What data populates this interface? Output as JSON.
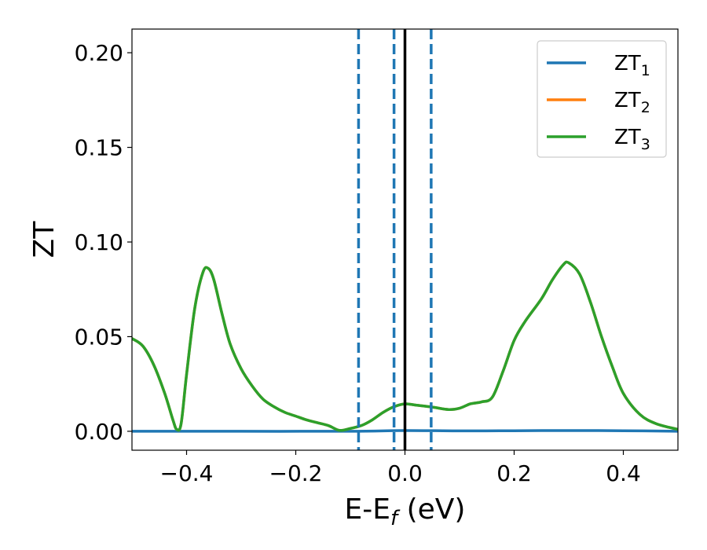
{
  "chart_data": {
    "type": "line",
    "xlabel": "E-E",
    "xlabel_sub": "f",
    "xlabel_unit": " (eV)",
    "ylabel": "ZT",
    "xlim": [
      -0.5,
      0.5
    ],
    "ylim": [
      -0.01,
      0.2125
    ],
    "xticks": [
      -0.4,
      -0.2,
      0.0,
      0.2,
      0.4
    ],
    "xtick_labels": [
      "−0.4",
      "−0.2",
      "0.0",
      "0.2",
      "0.4"
    ],
    "yticks": [
      0.0,
      0.05,
      0.1,
      0.15,
      0.2
    ],
    "ytick_labels": [
      "0.00",
      "0.05",
      "0.10",
      "0.15",
      "0.20"
    ],
    "grid": false,
    "legend_position": "top-right",
    "series": [
      {
        "name": "ZT",
        "name_sub": "1",
        "color": "#1f77b4",
        "x": [
          -0.5,
          -0.3,
          -0.1,
          0.0,
          0.1,
          0.2,
          0.3,
          0.4,
          0.5
        ],
        "y": [
          0.0,
          0.0,
          0.0,
          0.0004,
          0.0002,
          0.0003,
          0.0004,
          0.0003,
          0.0
        ]
      },
      {
        "name": "ZT",
        "name_sub": "2",
        "color": "#ff7f0e",
        "x": [
          -0.5,
          -0.48,
          -0.46,
          -0.44,
          -0.425,
          -0.418,
          -0.41,
          -0.4,
          -0.385,
          -0.37,
          -0.36,
          -0.35,
          -0.335,
          -0.32,
          -0.3,
          -0.28,
          -0.26,
          -0.24,
          -0.22,
          -0.2,
          -0.18,
          -0.16,
          -0.14,
          -0.12,
          -0.1,
          -0.08,
          -0.06,
          -0.04,
          -0.02,
          0.0,
          0.02,
          0.05,
          0.08,
          0.1,
          0.12,
          0.14,
          0.16,
          0.18,
          0.2,
          0.22,
          0.25,
          0.27,
          0.29,
          0.3,
          0.32,
          0.34,
          0.36,
          0.38,
          0.4,
          0.43,
          0.46,
          0.5
        ],
        "y": [
          0.049,
          0.045,
          0.035,
          0.02,
          0.006,
          0.001,
          0.004,
          0.03,
          0.065,
          0.084,
          0.086,
          0.08,
          0.062,
          0.046,
          0.033,
          0.024,
          0.017,
          0.013,
          0.01,
          0.008,
          0.006,
          0.0045,
          0.003,
          0.0005,
          0.0015,
          0.003,
          0.006,
          0.01,
          0.013,
          0.0145,
          0.0138,
          0.0128,
          0.0115,
          0.0122,
          0.0145,
          0.0155,
          0.018,
          0.032,
          0.048,
          0.058,
          0.07,
          0.08,
          0.088,
          0.089,
          0.083,
          0.068,
          0.05,
          0.034,
          0.02,
          0.009,
          0.004,
          0.001
        ]
      },
      {
        "name": "ZT",
        "name_sub": "3",
        "color": "#2ca02c",
        "x": [
          -0.5,
          -0.48,
          -0.46,
          -0.44,
          -0.425,
          -0.418,
          -0.41,
          -0.4,
          -0.385,
          -0.37,
          -0.36,
          -0.35,
          -0.335,
          -0.32,
          -0.3,
          -0.28,
          -0.26,
          -0.24,
          -0.22,
          -0.2,
          -0.18,
          -0.16,
          -0.14,
          -0.12,
          -0.1,
          -0.08,
          -0.06,
          -0.04,
          -0.02,
          0.0,
          0.02,
          0.05,
          0.08,
          0.1,
          0.12,
          0.14,
          0.16,
          0.18,
          0.2,
          0.22,
          0.25,
          0.27,
          0.29,
          0.3,
          0.32,
          0.34,
          0.36,
          0.38,
          0.4,
          0.43,
          0.46,
          0.5
        ],
        "y": [
          0.049,
          0.045,
          0.035,
          0.02,
          0.006,
          0.001,
          0.004,
          0.03,
          0.065,
          0.084,
          0.086,
          0.08,
          0.062,
          0.046,
          0.033,
          0.024,
          0.017,
          0.013,
          0.01,
          0.008,
          0.006,
          0.0045,
          0.003,
          0.0005,
          0.0015,
          0.003,
          0.006,
          0.01,
          0.013,
          0.0145,
          0.0138,
          0.0128,
          0.0115,
          0.0122,
          0.0145,
          0.0155,
          0.018,
          0.032,
          0.048,
          0.058,
          0.07,
          0.08,
          0.088,
          0.089,
          0.083,
          0.068,
          0.05,
          0.034,
          0.02,
          0.009,
          0.004,
          0.001
        ]
      }
    ],
    "vlines": [
      {
        "x": -0.085,
        "style": "dashed",
        "color": "#1f77b4"
      },
      {
        "x": -0.02,
        "style": "dashed",
        "color": "#1f77b4"
      },
      {
        "x": 0.048,
        "style": "dashed",
        "color": "#1f77b4"
      },
      {
        "x": 0.0,
        "style": "solid",
        "color": "#000000"
      }
    ]
  }
}
